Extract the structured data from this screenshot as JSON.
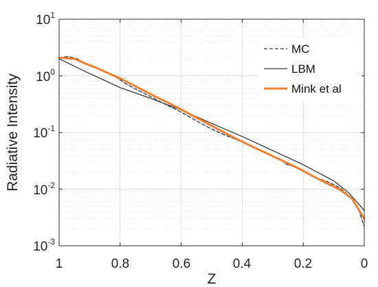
{
  "chart_data": {
    "type": "line",
    "xlabel": "Z",
    "ylabel": "Radiative Intensity",
    "x_reversed": true,
    "xlim": [
      0,
      1
    ],
    "ylim": [
      0.001,
      10
    ],
    "y_scale": "log",
    "x_ticks": [
      "1",
      "0.8",
      "0.6",
      "0.4",
      "0.2",
      "0"
    ],
    "y_ticks": [
      {
        "base": "10",
        "exp": "-3"
      },
      {
        "base": "10",
        "exp": "-2"
      },
      {
        "base": "10",
        "exp": "-1"
      },
      {
        "base": "10",
        "exp": "0"
      },
      {
        "base": "10",
        "exp": "1"
      }
    ],
    "grid": true,
    "legend_position": "top-right",
    "series": [
      {
        "name": "MC",
        "style": "dashed",
        "color": "#333333",
        "x": [
          1.0,
          0.97,
          0.94,
          0.9,
          0.86,
          0.82,
          0.78,
          0.74,
          0.7,
          0.66,
          0.62,
          0.58,
          0.54,
          0.5,
          0.46,
          0.42,
          0.38,
          0.34,
          0.3,
          0.27,
          0.26,
          0.24,
          0.2,
          0.16,
          0.12,
          0.1,
          0.08,
          0.06,
          0.04,
          0.02,
          0.0
        ],
        "y": [
          2.1,
          2.2,
          2.0,
          1.5,
          1.25,
          1.0,
          0.72,
          0.55,
          0.43,
          0.33,
          0.26,
          0.2,
          0.15,
          0.115,
          0.092,
          0.075,
          0.06,
          0.048,
          0.038,
          0.033,
          0.028,
          0.026,
          0.021,
          0.016,
          0.0135,
          0.012,
          0.0105,
          0.0085,
          0.0065,
          0.0045,
          0.0022
        ]
      },
      {
        "name": "LBM",
        "style": "solid",
        "color": "#333333",
        "x": [
          1.0,
          0.9,
          0.8,
          0.7,
          0.6,
          0.5,
          0.4,
          0.3,
          0.2,
          0.1,
          0.05,
          0.0
        ],
        "y": [
          2.0,
          1.1,
          0.62,
          0.4,
          0.25,
          0.145,
          0.085,
          0.048,
          0.027,
          0.014,
          0.0085,
          0.0042
        ]
      },
      {
        "name": "Mink et al",
        "style": "solid-thick",
        "color": "#F08030",
        "x": [
          1.0,
          0.95,
          0.92,
          0.88,
          0.84,
          0.8,
          0.76,
          0.72,
          0.68,
          0.64,
          0.6,
          0.56,
          0.52,
          0.48,
          0.44,
          0.4,
          0.36,
          0.32,
          0.28,
          0.24,
          0.2,
          0.16,
          0.12,
          0.08,
          0.04,
          0.0
        ],
        "y": [
          2.1,
          2.0,
          1.7,
          1.4,
          1.12,
          0.9,
          0.7,
          0.54,
          0.42,
          0.33,
          0.255,
          0.195,
          0.15,
          0.115,
          0.088,
          0.069,
          0.054,
          0.043,
          0.034,
          0.027,
          0.021,
          0.016,
          0.0125,
          0.0098,
          0.0068,
          0.003
        ]
      }
    ]
  }
}
